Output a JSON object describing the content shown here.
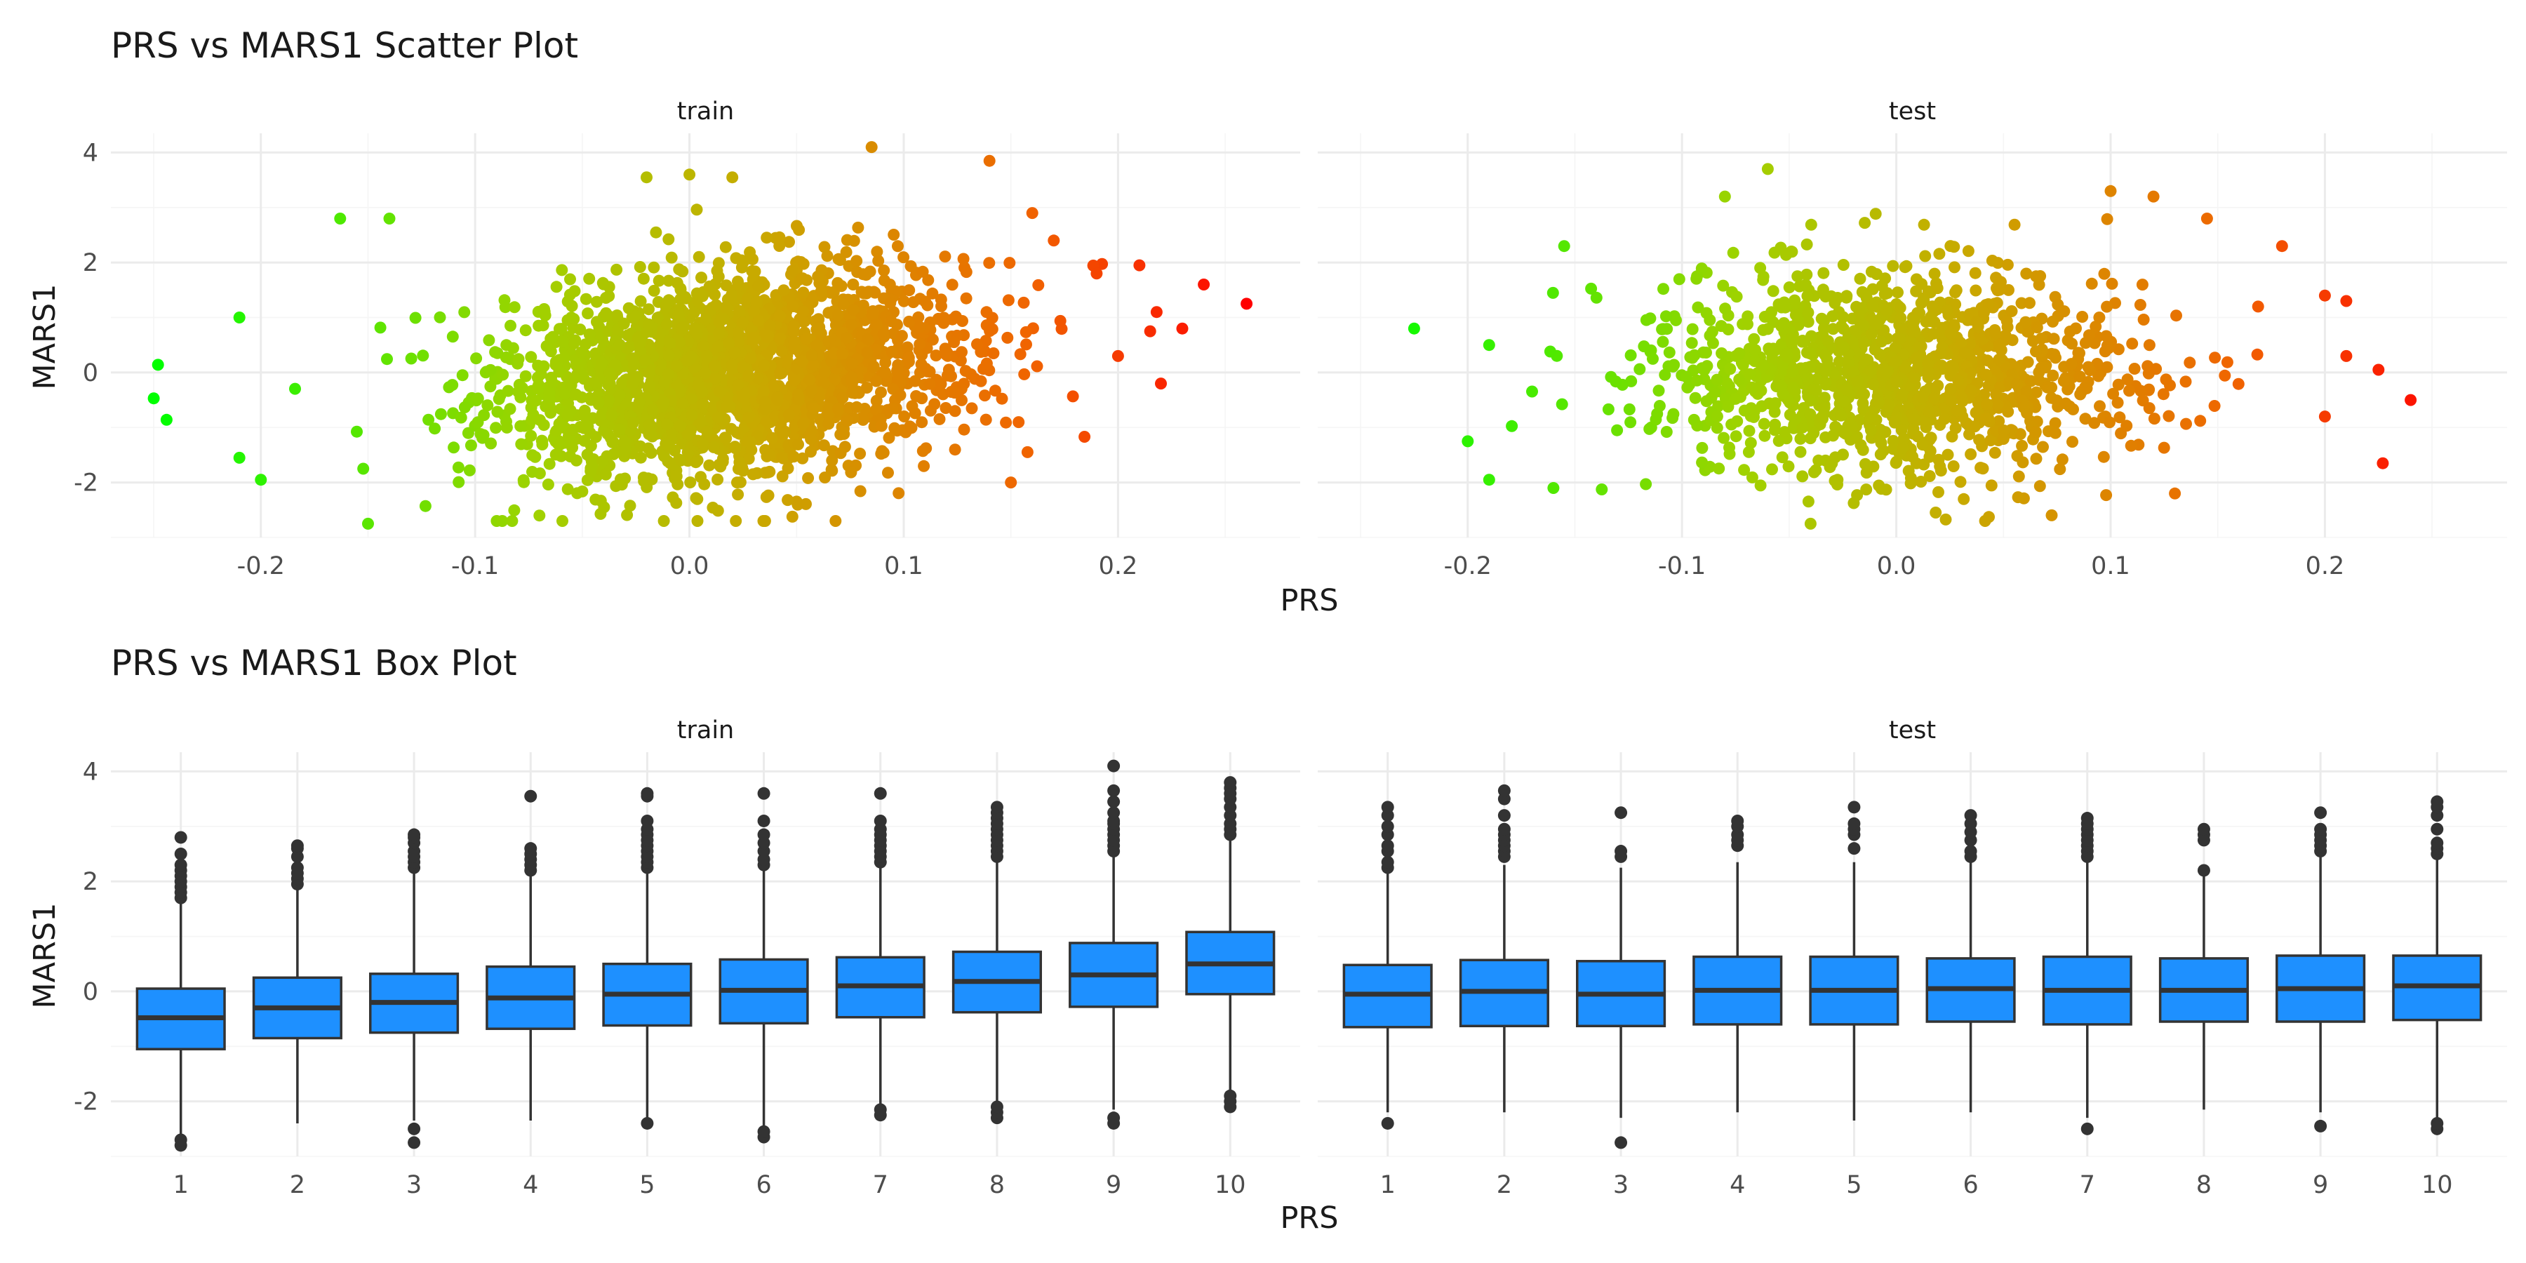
{
  "chart_data": [
    {
      "type": "scatter",
      "title": "PRS vs MARS1 Scatter Plot",
      "xlabel": "PRS",
      "ylabel": "MARS1",
      "grid": true,
      "legend": "none",
      "color_scale": {
        "low": "#00ff00",
        "high": "#ff0000",
        "mapped_to": "PRS"
      },
      "panels": [
        {
          "name": "train",
          "xlim": [
            -0.27,
            0.285
          ],
          "ylim": [
            -3.0,
            4.35
          ],
          "x_ticks": [
            -0.2,
            -0.1,
            0.0,
            0.1,
            0.2
          ],
          "x_tick_labels": [
            "-0.2",
            "-0.1",
            "0.0",
            "0.1",
            "0.2"
          ],
          "y_ticks": [
            -2,
            0,
            2,
            4
          ],
          "y_tick_labels": [
            "-2",
            "0",
            "2",
            "4"
          ],
          "cloud": {
            "n": 2200,
            "x_mean": 0.02,
            "x_sd": 0.055,
            "y_mean": 0.0,
            "y_sd": 0.95,
            "correlation": 0.22
          },
          "points": [
            {
              "x": -0.248,
              "y": 0.14
            },
            {
              "x": -0.25,
              "y": -0.47
            },
            {
              "x": -0.244,
              "y": -0.86
            },
            {
              "x": -0.21,
              "y": 1.0
            },
            {
              "x": -0.21,
              "y": -1.55
            },
            {
              "x": -0.2,
              "y": -1.95
            },
            {
              "x": -0.163,
              "y": 2.8
            },
            {
              "x": -0.14,
              "y": 2.8
            },
            {
              "x": -0.15,
              "y": -2.75
            },
            {
              "x": -0.07,
              "y": -2.6
            },
            {
              "x": -0.02,
              "y": 3.55
            },
            {
              "x": 0.0,
              "y": 3.6
            },
            {
              "x": 0.02,
              "y": 3.55
            },
            {
              "x": 0.085,
              "y": 4.1
            },
            {
              "x": 0.14,
              "y": 3.85
            },
            {
              "x": 0.15,
              "y": -2.0
            },
            {
              "x": 0.16,
              "y": 2.9
            },
            {
              "x": 0.17,
              "y": 2.4
            },
            {
              "x": 0.19,
              "y": 1.8
            },
            {
              "x": 0.2,
              "y": 0.3
            },
            {
              "x": 0.21,
              "y": 1.95
            },
            {
              "x": 0.215,
              "y": 0.75
            },
            {
              "x": 0.218,
              "y": 1.1
            },
            {
              "x": 0.23,
              "y": 0.8
            },
            {
              "x": 0.22,
              "y": -0.2
            },
            {
              "x": 0.24,
              "y": 1.6
            },
            {
              "x": 0.26,
              "y": 1.25
            }
          ]
        },
        {
          "name": "test",
          "xlim": [
            -0.27,
            0.285
          ],
          "ylim": [
            -3.0,
            4.35
          ],
          "x_ticks": [
            -0.2,
            -0.1,
            0.0,
            0.1,
            0.2
          ],
          "x_tick_labels": [
            "-0.2",
            "-0.1",
            "0.0",
            "0.1",
            "0.2"
          ],
          "y_ticks": [
            -2,
            0,
            2,
            4
          ],
          "y_tick_labels": [
            "-2",
            "0",
            "2",
            "4"
          ],
          "cloud": {
            "n": 1300,
            "x_mean": 0.0,
            "x_sd": 0.055,
            "y_mean": 0.0,
            "y_sd": 0.95,
            "correlation": 0.0
          },
          "points": [
            {
              "x": -0.225,
              "y": 0.8
            },
            {
              "x": -0.2,
              "y": -1.25
            },
            {
              "x": -0.19,
              "y": -1.95
            },
            {
              "x": -0.19,
              "y": 0.5
            },
            {
              "x": -0.155,
              "y": 2.3
            },
            {
              "x": -0.16,
              "y": -2.1
            },
            {
              "x": -0.08,
              "y": 3.2
            },
            {
              "x": -0.06,
              "y": 3.7
            },
            {
              "x": -0.04,
              "y": -2.75
            },
            {
              "x": 0.1,
              "y": 3.3
            },
            {
              "x": 0.12,
              "y": 3.2
            },
            {
              "x": 0.145,
              "y": 2.8
            },
            {
              "x": 0.13,
              "y": -2.2
            },
            {
              "x": 0.18,
              "y": 2.3
            },
            {
              "x": 0.2,
              "y": 1.4
            },
            {
              "x": 0.2,
              "y": -0.8
            },
            {
              "x": 0.21,
              "y": 1.3
            },
            {
              "x": 0.21,
              "y": 0.3
            },
            {
              "x": 0.225,
              "y": 0.05
            },
            {
              "x": 0.227,
              "y": -1.65
            },
            {
              "x": 0.24,
              "y": -0.5
            }
          ]
        }
      ]
    },
    {
      "type": "box",
      "title": "PRS vs MARS1 Box Plot",
      "xlabel": "PRS",
      "ylabel": "MARS1",
      "grid": true,
      "legend": "none",
      "fill_color": "#1e90ff",
      "categories": [
        "1",
        "2",
        "3",
        "4",
        "5",
        "6",
        "7",
        "8",
        "9",
        "10"
      ],
      "panels": [
        {
          "name": "train",
          "ylim": [
            -3.0,
            4.35
          ],
          "y_ticks": [
            -2,
            0,
            2,
            4
          ],
          "y_tick_labels": [
            "-2",
            "0",
            "2",
            "4"
          ],
          "boxes": [
            {
              "q1": -1.05,
              "median": -0.48,
              "q3": 0.05,
              "whisker_low": -2.6,
              "whisker_high": 1.65,
              "outliers": [
                -2.8,
                -2.7,
                1.7,
                1.8,
                1.9,
                2.0,
                2.1,
                2.2,
                2.3,
                2.5,
                2.8
              ]
            },
            {
              "q1": -0.85,
              "median": -0.3,
              "q3": 0.25,
              "whisker_low": -2.4,
              "whisker_high": 1.9,
              "outliers": [
                1.95,
                2.05,
                2.15,
                2.25,
                2.45,
                2.6,
                2.65
              ]
            },
            {
              "q1": -0.75,
              "median": -0.2,
              "q3": 0.32,
              "whisker_low": -2.35,
              "whisker_high": 2.2,
              "outliers": [
                -2.75,
                -2.5,
                2.25,
                2.35,
                2.45,
                2.55,
                2.7,
                2.8,
                2.85
              ]
            },
            {
              "q1": -0.68,
              "median": -0.12,
              "q3": 0.45,
              "whisker_low": -2.35,
              "whisker_high": 2.15,
              "outliers": [
                2.2,
                2.3,
                2.4,
                2.5,
                2.6,
                3.55
              ]
            },
            {
              "q1": -0.62,
              "median": -0.05,
              "q3": 0.5,
              "whisker_low": -2.35,
              "whisker_high": 2.2,
              "outliers": [
                -2.4,
                2.25,
                2.35,
                2.45,
                2.55,
                2.65,
                2.75,
                2.85,
                2.95,
                3.1,
                3.55,
                3.6
              ]
            },
            {
              "q1": -0.58,
              "median": 0.02,
              "q3": 0.58,
              "whisker_low": -2.45,
              "whisker_high": 2.25,
              "outliers": [
                -2.65,
                -2.55,
                2.3,
                2.4,
                2.55,
                2.7,
                2.85,
                3.1,
                3.6
              ]
            },
            {
              "q1": -0.47,
              "median": 0.1,
              "q3": 0.62,
              "whisker_low": -2.1,
              "whisker_high": 2.3,
              "outliers": [
                -2.25,
                -2.15,
                2.35,
                2.45,
                2.55,
                2.65,
                2.75,
                2.85,
                2.95,
                3.1,
                3.6
              ]
            },
            {
              "q1": -0.38,
              "median": 0.18,
              "q3": 0.72,
              "whisker_low": -2.0,
              "whisker_high": 2.4,
              "outliers": [
                -2.3,
                -2.2,
                -2.1,
                2.45,
                2.55,
                2.65,
                2.75,
                2.85,
                2.95,
                3.05,
                3.15,
                3.25,
                3.35
              ]
            },
            {
              "q1": -0.28,
              "median": 0.3,
              "q3": 0.88,
              "whisker_low": -2.15,
              "whisker_high": 2.5,
              "outliers": [
                -2.4,
                -2.3,
                2.55,
                2.65,
                2.75,
                2.85,
                2.95,
                3.05,
                3.1,
                3.25,
                3.45,
                3.65,
                4.1
              ]
            },
            {
              "q1": -0.05,
              "median": 0.5,
              "q3": 1.08,
              "whisker_low": -1.85,
              "whisker_high": 2.8,
              "outliers": [
                -2.1,
                -2.0,
                -1.9,
                2.85,
                2.95,
                3.05,
                3.2,
                3.35,
                3.5,
                3.6,
                3.7,
                3.8
              ]
            }
          ]
        },
        {
          "name": "test",
          "ylim": [
            -3.0,
            4.35
          ],
          "y_ticks": [
            -2,
            0,
            2,
            4
          ],
          "y_tick_labels": [
            "-2",
            "0",
            "2",
            "4"
          ],
          "boxes": [
            {
              "q1": -0.65,
              "median": -0.05,
              "q3": 0.48,
              "whisker_low": -2.2,
              "whisker_high": 2.2,
              "outliers": [
                -2.4,
                2.25,
                2.35,
                2.55,
                2.65,
                2.85,
                3.0,
                3.2,
                3.35
              ]
            },
            {
              "q1": -0.63,
              "median": 0.0,
              "q3": 0.57,
              "whisker_low": -2.2,
              "whisker_high": 2.3,
              "outliers": [
                2.45,
                2.55,
                2.65,
                2.75,
                2.85,
                2.95,
                3.2,
                3.5,
                3.65
              ]
            },
            {
              "q1": -0.63,
              "median": -0.05,
              "q3": 0.55,
              "whisker_low": -2.3,
              "whisker_high": 2.25,
              "outliers": [
                -2.75,
                2.45,
                2.55,
                3.25
              ]
            },
            {
              "q1": -0.6,
              "median": 0.02,
              "q3": 0.63,
              "whisker_low": -2.2,
              "whisker_high": 2.35,
              "outliers": [
                2.65,
                2.75,
                2.85,
                3.0,
                3.1
              ]
            },
            {
              "q1": -0.6,
              "median": 0.02,
              "q3": 0.63,
              "whisker_low": -2.35,
              "whisker_high": 2.35,
              "outliers": [
                2.6,
                2.85,
                2.95,
                3.05,
                3.35
              ]
            },
            {
              "q1": -0.55,
              "median": 0.05,
              "q3": 0.6,
              "whisker_low": -2.2,
              "whisker_high": 2.35,
              "outliers": [
                2.45,
                2.55,
                2.75,
                2.9,
                3.05,
                3.2
              ]
            },
            {
              "q1": -0.6,
              "median": 0.02,
              "q3": 0.63,
              "whisker_low": -2.3,
              "whisker_high": 2.4,
              "outliers": [
                -2.5,
                2.45,
                2.55,
                2.65,
                2.75,
                2.85,
                2.95,
                3.05,
                3.15
              ]
            },
            {
              "q1": -0.55,
              "median": 0.02,
              "q3": 0.6,
              "whisker_low": -2.15,
              "whisker_high": 2.1,
              "outliers": [
                2.2,
                2.75,
                2.85,
                2.95
              ]
            },
            {
              "q1": -0.55,
              "median": 0.05,
              "q3": 0.65,
              "whisker_low": -2.2,
              "whisker_high": 2.5,
              "outliers": [
                -2.45,
                2.55,
                2.65,
                2.75,
                2.85,
                2.95,
                3.25
              ]
            },
            {
              "q1": -0.52,
              "median": 0.1,
              "q3": 0.65,
              "whisker_low": -2.3,
              "whisker_high": 2.45,
              "outliers": [
                -2.5,
                -2.4,
                2.5,
                2.6,
                2.7,
                2.95,
                3.2,
                3.35,
                3.45
              ]
            }
          ]
        }
      ]
    }
  ]
}
